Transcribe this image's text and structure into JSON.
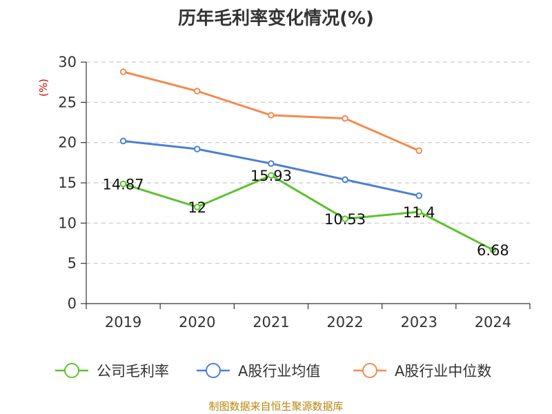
{
  "chart_data": {
    "type": "line",
    "title": "历年毛利率变化情况(%)",
    "ylabel": "(%)",
    "categories": [
      "2019",
      "2020",
      "2021",
      "2022",
      "2023",
      "2024"
    ],
    "ylim": [
      0,
      30
    ],
    "yticks": [
      0,
      5,
      10,
      15,
      20,
      25,
      30
    ],
    "grid": true,
    "legend_position": "bottom",
    "series": [
      {
        "name": "公司毛利率",
        "color": "#5bc22c",
        "values": [
          14.87,
          12,
          15.93,
          10.53,
          11.4,
          6.68
        ],
        "labels": [
          "14.87",
          "12",
          "15.93",
          "10.53",
          "11.4",
          "6.68"
        ]
      },
      {
        "name": "A股行业均值",
        "color": "#4a7fd6",
        "values": [
          20.2,
          19.2,
          17.4,
          15.4,
          13.4,
          null
        ]
      },
      {
        "name": "A股行业中位数",
        "color": "#f5894d",
        "values": [
          28.8,
          26.4,
          23.4,
          23.0,
          19.0,
          null
        ]
      }
    ]
  },
  "footer": {
    "source": "制图数据来自恒生聚源数据库"
  }
}
